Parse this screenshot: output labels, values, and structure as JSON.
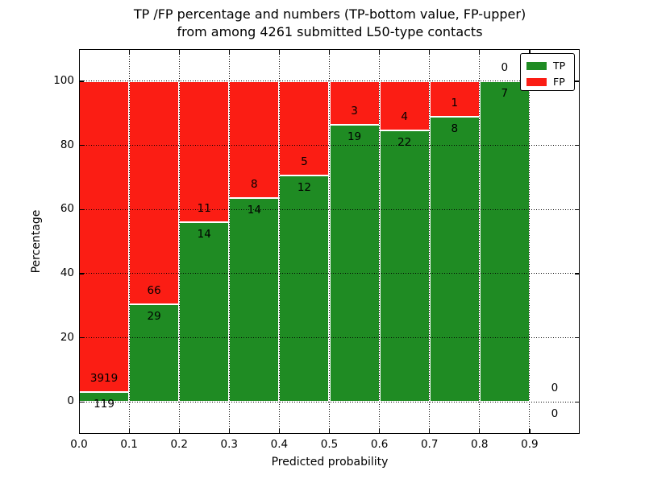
{
  "chart_data": {
    "type": "bar",
    "stacked": true,
    "normalized_to_percent": true,
    "title_line1": "TP /FP percentage and numbers (TP-bottom value, FP-upper)",
    "title_line2": "from among 4261 submitted L50-type contacts",
    "xlabel": "Predicted probability",
    "ylabel": "Percentage",
    "xlim": [
      0.0,
      1.0
    ],
    "ylim": [
      -10,
      110
    ],
    "xticks": [
      "0.0",
      "0.1",
      "0.2",
      "0.3",
      "0.4",
      "0.5",
      "0.6",
      "0.7",
      "0.8",
      "0.9"
    ],
    "yticks": [
      0,
      20,
      40,
      60,
      80,
      100
    ],
    "grid": true,
    "bin_width": 0.1,
    "bins": [
      {
        "x0": 0.0,
        "tp": 119,
        "fp": 3919,
        "tp_pct": 2.95,
        "fp_pct": 97.05
      },
      {
        "x0": 0.1,
        "tp": 29,
        "fp": 66,
        "tp_pct": 30.53,
        "fp_pct": 69.47
      },
      {
        "x0": 0.2,
        "tp": 14,
        "fp": 11,
        "tp_pct": 56.0,
        "fp_pct": 44.0
      },
      {
        "x0": 0.3,
        "tp": 14,
        "fp": 8,
        "tp_pct": 63.64,
        "fp_pct": 36.36
      },
      {
        "x0": 0.4,
        "tp": 12,
        "fp": 5,
        "tp_pct": 70.59,
        "fp_pct": 29.41
      },
      {
        "x0": 0.5,
        "tp": 19,
        "fp": 3,
        "tp_pct": 86.36,
        "fp_pct": 13.64
      },
      {
        "x0": 0.6,
        "tp": 22,
        "fp": 4,
        "tp_pct": 84.62,
        "fp_pct": 15.38
      },
      {
        "x0": 0.7,
        "tp": 8,
        "fp": 1,
        "tp_pct": 88.89,
        "fp_pct": 11.11
      },
      {
        "x0": 0.8,
        "tp": 7,
        "fp": 0,
        "tp_pct": 100.0,
        "fp_pct": 0.0
      },
      {
        "x0": 0.9,
        "tp": 0,
        "fp": 0,
        "tp_pct": 0.0,
        "fp_pct": 0.0
      }
    ],
    "colors": {
      "tp": "#1f8b23",
      "fp": "#fb1d14"
    },
    "legend": {
      "position": "upper-right",
      "entries": [
        {
          "label": "TP",
          "color": "#1f8b23"
        },
        {
          "label": "FP",
          "color": "#fb1d14"
        }
      ]
    }
  }
}
